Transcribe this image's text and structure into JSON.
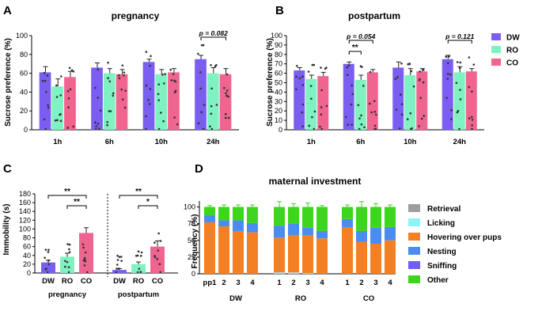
{
  "panel_labels": [
    "A",
    "B",
    "C",
    "D"
  ],
  "chart_data": [
    {
      "type": "bar",
      "title": "pregnancy",
      "ylabel": "Sucrose preference (%)",
      "ylim": [
        0,
        100
      ],
      "yticks": [
        0,
        20,
        40,
        60,
        80,
        100
      ],
      "categories": [
        "1h",
        "6h",
        "10h",
        "24h"
      ],
      "series": [
        {
          "name": "DW",
          "color": "#7b5ef1",
          "values": [
            61,
            66,
            72,
            75
          ],
          "errors": [
            6,
            5,
            3,
            4
          ]
        },
        {
          "name": "RO",
          "color": "#7ef2c0",
          "values": [
            46,
            60,
            59,
            60
          ],
          "errors": [
            8,
            5,
            5,
            6
          ]
        },
        {
          "name": "CO",
          "color": "#f06490",
          "values": [
            56,
            59,
            61,
            59
          ],
          "errors": [
            6,
            5,
            4,
            6
          ]
        }
      ],
      "annotations": [
        {
          "text": "p = 0.082",
          "from": [
            3,
            0
          ],
          "to": [
            3,
            2
          ]
        }
      ]
    },
    {
      "type": "bar",
      "title": "postpartum",
      "ylabel": "Sucrose preference (%)",
      "ylim": [
        0,
        100
      ],
      "yticks": [
        0,
        10,
        20,
        30,
        40,
        50,
        60,
        70,
        80,
        90,
        100
      ],
      "categories": [
        "1h",
        "6h",
        "10h",
        "24h"
      ],
      "series": [
        {
          "name": "DW",
          "color": "#7b5ef1",
          "values": [
            63,
            70,
            66,
            75
          ],
          "errors": [
            3,
            2,
            6,
            4
          ]
        },
        {
          "name": "RO",
          "color": "#7ef2c0",
          "values": [
            54,
            53,
            58,
            61
          ],
          "errors": [
            4,
            5,
            7,
            6
          ]
        },
        {
          "name": "CO",
          "color": "#f06490",
          "values": [
            57,
            61,
            62,
            62
          ],
          "errors": [
            4,
            3,
            3,
            3
          ]
        }
      ],
      "annotations": [
        {
          "text": "p = 0.054",
          "from": [
            1,
            0
          ],
          "to": [
            1,
            2
          ]
        },
        {
          "text": "**",
          "from": [
            1,
            0
          ],
          "to": [
            1,
            1
          ]
        },
        {
          "text": "p = 0.121",
          "from": [
            3,
            0
          ],
          "to": [
            3,
            2
          ]
        }
      ],
      "legend": {
        "position": "right",
        "entries": [
          "DW",
          "RO",
          "CO"
        ]
      }
    },
    {
      "type": "bar",
      "ylabel": "Immobility (s)",
      "ylim": [
        0,
        180
      ],
      "yticks": [
        0,
        20,
        40,
        60,
        80,
        100,
        120,
        140,
        160,
        180
      ],
      "groups": [
        {
          "name": "pregnancy",
          "categories": [
            "DW",
            "RO",
            "CO"
          ],
          "values": [
            24,
            37,
            91
          ],
          "errors": [
            5,
            8,
            12
          ]
        },
        {
          "name": "postpartum",
          "categories": [
            "DW",
            "RO",
            "CO"
          ],
          "values": [
            7,
            20,
            60
          ],
          "errors": [
            3,
            5,
            13
          ]
        }
      ],
      "colors": [
        "#7b5ef1",
        "#7ef2c0",
        "#f06490"
      ],
      "annotations": [
        {
          "text": "**",
          "group": 0,
          "from": 0,
          "to": 2
        },
        {
          "text": "**",
          "group": 0,
          "from": 1,
          "to": 2
        },
        {
          "text": "**",
          "group": 1,
          "from": 0,
          "to": 2
        },
        {
          "text": "*",
          "group": 1,
          "from": 1,
          "to": 2
        }
      ]
    },
    {
      "type": "stacked-bar",
      "title": "maternal investment",
      "ylabel": "Frequency (%)",
      "ylim": [
        0,
        100
      ],
      "yticks": [
        0,
        25,
        50,
        75,
        100
      ],
      "groups": [
        {
          "name": "DW",
          "days": [
            "pp1",
            "2",
            "3",
            "4"
          ]
        },
        {
          "name": "RO",
          "days": [
            "1",
            "2",
            "3",
            "4"
          ]
        },
        {
          "name": "CO",
          "days": [
            "1",
            "2",
            "3",
            "4"
          ]
        }
      ],
      "series": [
        {
          "name": "Retrieval",
          "color": "#9e9e9e",
          "values": [
            0,
            0,
            0,
            0,
            0,
            0,
            0,
            0,
            0,
            0,
            0,
            0
          ]
        },
        {
          "name": "Licking",
          "color": "#8ef3f3",
          "values": [
            0,
            0,
            0,
            0,
            2,
            2,
            1,
            0,
            0,
            0,
            0,
            0
          ]
        },
        {
          "name": "Hovering over pups",
          "color": "#f58024",
          "values": [
            77,
            71,
            64,
            62,
            52,
            56,
            57,
            53,
            69,
            48,
            45,
            50
          ]
        },
        {
          "name": "Nesting",
          "color": "#4a8cf0",
          "values": [
            10,
            9,
            16,
            14,
            18,
            17,
            11,
            11,
            13,
            16,
            24,
            20
          ]
        },
        {
          "name": "Sniffing",
          "color": "#6f5ff0",
          "values": [
            0,
            0,
            0,
            0,
            0,
            0,
            0,
            0,
            0,
            0,
            0,
            0
          ]
        },
        {
          "name": "Other",
          "color": "#3ed61c",
          "values": [
            13,
            20,
            20,
            24,
            28,
            25,
            31,
            36,
            18,
            36,
            31,
            30
          ]
        }
      ],
      "errors_top": [
        2,
        3,
        3,
        3,
        8,
        5,
        6,
        2,
        3,
        8,
        5,
        3
      ],
      "legend": {
        "position": "right",
        "entries": [
          "Retrieval",
          "Licking",
          "Hovering over pups",
          "Nesting",
          "Sniffing",
          "Other"
        ]
      }
    }
  ]
}
